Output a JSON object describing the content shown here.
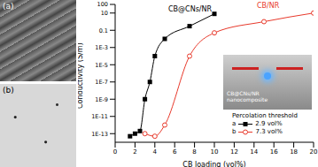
{
  "chart_data": {
    "type": "line",
    "xlabel": "CB loading (vol%)",
    "ylabel": "Conductivity (S/m)",
    "log": "y",
    "xlim": [
      0,
      20
    ],
    "xticks": [
      0,
      2,
      4,
      6,
      8,
      10,
      12,
      14,
      16,
      18,
      20
    ],
    "ylim": [
      1e-14,
      100
    ],
    "yticks": [
      {
        "value": 1e-13,
        "label": "1E-13"
      },
      {
        "value": 1e-11,
        "label": "1E-11"
      },
      {
        "value": 1e-09,
        "label": "1E-9"
      },
      {
        "value": 1e-07,
        "label": "1E-7"
      },
      {
        "value": 1e-05,
        "label": "1E-5"
      },
      {
        "value": 0.001,
        "label": "1E-3"
      },
      0.1,
      10,
      100
    ],
    "series": [
      {
        "name": "CB@CNs/NR",
        "color": "#000000",
        "marker": "square",
        "line_style": "solid",
        "x": [
          1.5,
          2,
          2.5,
          3,
          3.5,
          4,
          5,
          7.5,
          10
        ],
        "values": [
          5e-14,
          1e-13,
          2e-13,
          1e-09,
          1e-07,
          0.0001,
          0.01,
          0.3,
          8
        ]
      },
      {
        "name": "CB/NR",
        "color": "#e8392b",
        "marker": "circle",
        "line_style": "solid",
        "x": [
          3,
          4,
          5,
          7.5,
          10,
          15,
          20
        ],
        "values": [
          1e-13,
          5e-14,
          1e-12,
          0.0001,
          0.05,
          1,
          10
        ]
      }
    ],
    "annotations": {
      "panels": [
        "(a)",
        "(b)"
      ],
      "inset_label": [
        "CB@CNs/NR",
        "nanocomposite"
      ],
      "percolation": {
        "title": "Percolation threshold",
        "entries": [
          {
            "label": "a",
            "value": "2.9 vol%"
          },
          {
            "label": "b",
            "value": "7.3 vol%"
          }
        ]
      }
    }
  }
}
